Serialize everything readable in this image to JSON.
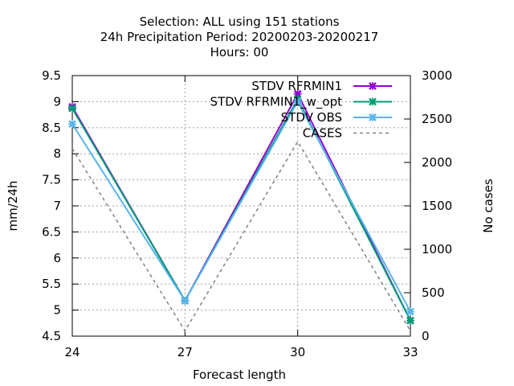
{
  "chart_data": {
    "type": "line",
    "title_lines": [
      "Selection: ALL using   151 stations",
      "24h Precipitation   Period: 20200203-20200217",
      "Hours:  00"
    ],
    "xlabel": "Forecast length",
    "ylabel": "mm/24h",
    "y2label": "No cases",
    "x": [
      24,
      27,
      30,
      33
    ],
    "x_ticks": [
      "24",
      "27",
      "30",
      "33"
    ],
    "xlim": [
      24,
      33
    ],
    "ylim": [
      4.5,
      9.5
    ],
    "y_ticks": [
      "4.5",
      "5",
      "5.5",
      "6",
      "6.5",
      "7",
      "7.5",
      "8",
      "8.5",
      "9",
      "9.5"
    ],
    "y2lim": [
      0,
      3000
    ],
    "y2_ticks": [
      "0",
      "500",
      "1000",
      "1500",
      "2000",
      "2500",
      "3000"
    ],
    "grid": true,
    "legend_position": "top-right",
    "series": [
      {
        "name": "STDV RFRMIN1",
        "axis": "y",
        "color": "#9400d3",
        "marker": "x",
        "dash": false,
        "values": [
          8.9,
          5.18,
          9.15,
          4.8
        ]
      },
      {
        "name": "STDV RFRMIN1_w_opt",
        "axis": "y",
        "color": "#009e73",
        "marker": "x",
        "dash": false,
        "values": [
          8.87,
          5.18,
          9.05,
          4.8
        ]
      },
      {
        "name": "STDV OBS",
        "axis": "y",
        "color": "#56b4e9",
        "marker": "x",
        "dash": false,
        "values": [
          8.57,
          5.18,
          9.0,
          4.97
        ]
      },
      {
        "name": "CASES",
        "axis": "y2",
        "color": "#808080",
        "marker": "",
        "dash": true,
        "values": [
          2160,
          60,
          2240,
          60
        ]
      }
    ]
  }
}
